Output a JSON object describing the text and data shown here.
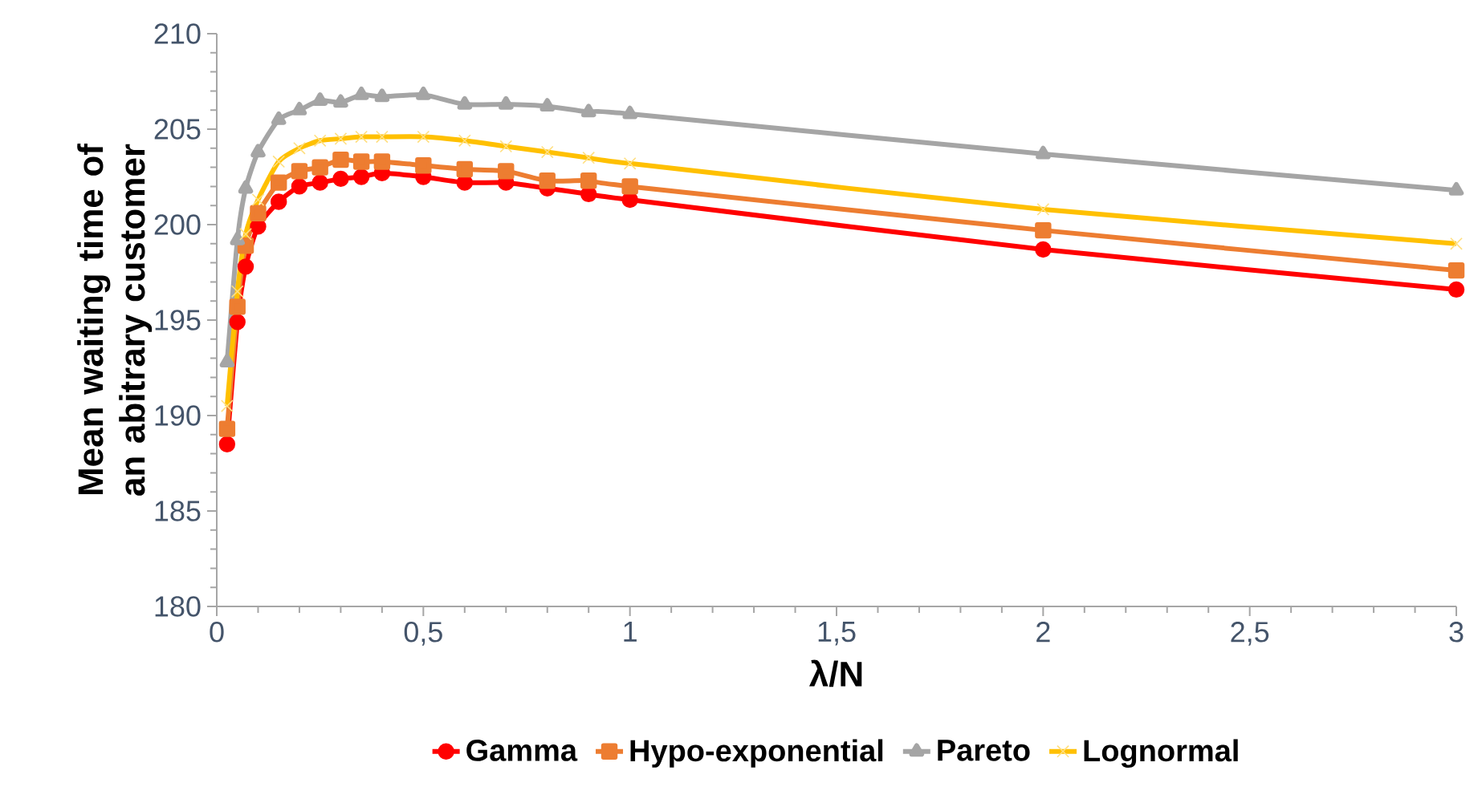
{
  "chart_data": {
    "type": "line",
    "xlabel": "λ/N",
    "ylabel": "Mean waiting time of an abitrary customer",
    "xlim": [
      0,
      3
    ],
    "ylim": [
      180,
      210
    ],
    "xticks": [
      0,
      {
        "value": 0.5,
        "label": "0,5"
      },
      1,
      {
        "value": 1.5,
        "label": "1,5"
      },
      2,
      {
        "value": 2.5,
        "label": "2,5"
      },
      3
    ],
    "yticks": [
      180,
      185,
      190,
      195,
      200,
      205,
      210
    ],
    "x": [
      0.025,
      0.05,
      0.07,
      0.1,
      0.15,
      0.2,
      0.25,
      0.3,
      0.35,
      0.4,
      0.5,
      0.6,
      0.7,
      0.8,
      0.9,
      1,
      2,
      3
    ],
    "series": [
      {
        "name": "Gamma",
        "color": "#ff0000",
        "marker": "circle",
        "values": [
          188.5,
          194.9,
          197.8,
          199.9,
          201.2,
          202.0,
          202.2,
          202.4,
          202.5,
          202.7,
          202.5,
          202.2,
          202.2,
          201.9,
          201.6,
          201.3,
          198.7,
          196.6
        ]
      },
      {
        "name": "Hypo-exponential",
        "color": "#ed7d31",
        "marker": "square",
        "values": [
          189.3,
          195.7,
          198.9,
          200.6,
          202.2,
          202.8,
          203.0,
          203.4,
          203.3,
          203.3,
          203.1,
          202.9,
          202.8,
          202.3,
          202.3,
          202.0,
          199.7,
          197.6
        ]
      },
      {
        "name": "Pareto",
        "color": "#a5a5a5",
        "marker": "triangle",
        "values": [
          192.8,
          199.2,
          201.9,
          203.8,
          205.5,
          206.0,
          206.5,
          206.4,
          206.8,
          206.7,
          206.8,
          206.3,
          206.3,
          206.2,
          205.9,
          205.8,
          203.7,
          201.8
        ]
      },
      {
        "name": "Lognormal",
        "color": "#ffc000",
        "marker": "cross",
        "values": [
          190.5,
          196.5,
          199.5,
          201.3,
          203.3,
          204.0,
          204.4,
          204.5,
          204.6,
          204.6,
          204.6,
          204.4,
          204.1,
          203.8,
          203.5,
          203.2,
          200.8,
          199.0
        ]
      }
    ],
    "grid": false,
    "legend": "bottom",
    "line_style": "solid"
  }
}
